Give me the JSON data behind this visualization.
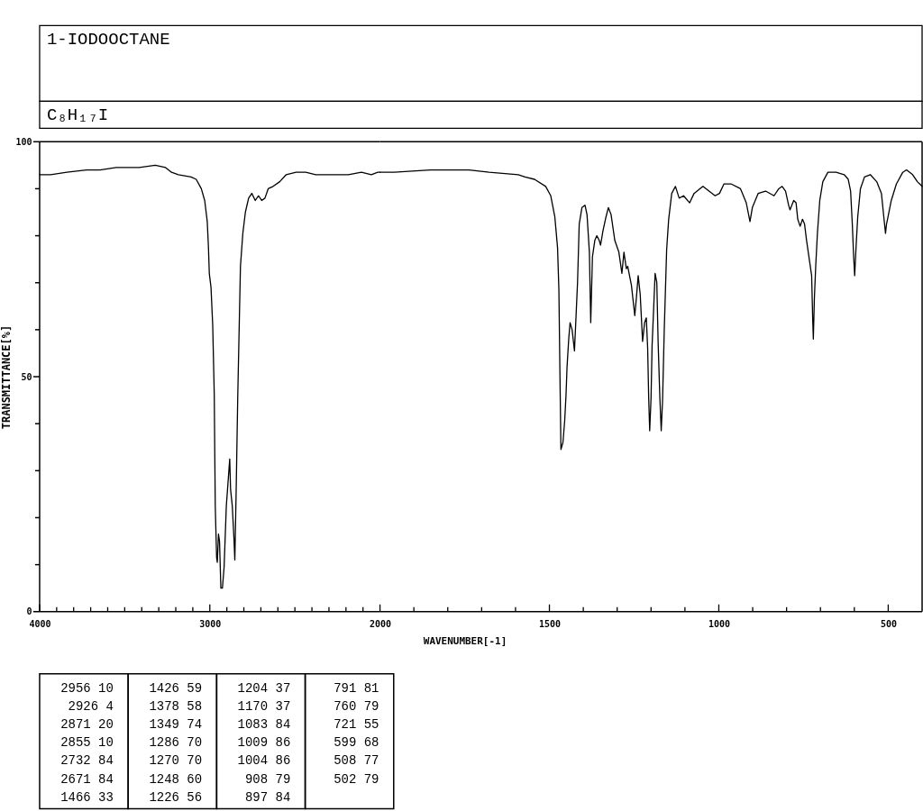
{
  "chart_data": [
    {
      "type": "line",
      "title": "1-IODOOCTANE",
      "subtitle": "C₈H₁₇I",
      "ylabel": "TRANSMITTANCE[%]",
      "xlim": [
        4000,
        2000
      ],
      "ylim": [
        0,
        100
      ],
      "xticks": [
        4000,
        {
          "value": 3900,
          "label": null
        },
        {
          "value": 3800,
          "label": null
        },
        {
          "value": 3700,
          "label": null
        },
        {
          "value": 3600,
          "label": null
        },
        {
          "value": 3500,
          "label": null
        },
        {
          "value": 3400,
          "label": null
        },
        {
          "value": 3300,
          "label": null
        },
        {
          "value": 3200,
          "label": null
        },
        {
          "value": 3100,
          "label": null
        },
        3000,
        {
          "value": 2900,
          "label": null
        },
        {
          "value": 2800,
          "label": null
        },
        {
          "value": 2700,
          "label": null
        },
        {
          "value": 2600,
          "label": null
        },
        {
          "value": 2500,
          "label": null
        },
        {
          "value": 2400,
          "label": null
        },
        {
          "value": 2300,
          "label": null
        },
        {
          "value": 2200,
          "label": null
        },
        {
          "value": 2100,
          "label": null
        }
      ],
      "yticks": [
        0,
        {
          "value": 10,
          "label": null
        },
        {
          "value": 20,
          "label": null
        },
        {
          "value": 30,
          "label": null
        },
        {
          "value": 40,
          "label": null
        },
        50,
        {
          "value": 60,
          "label": null
        },
        {
          "value": 70,
          "label": null
        },
        {
          "value": 80,
          "label": null
        },
        {
          "value": 90,
          "label": null
        },
        100
      ],
      "x": [
        4000,
        3935,
        3840,
        3725,
        3645,
        3550,
        3455,
        3415,
        3320,
        3260,
        3225,
        3185,
        3110,
        3080,
        3050,
        3030,
        3015,
        3008,
        3003,
        2993,
        2983,
        2974,
        2968,
        2960,
        2956,
        2949,
        2943,
        2935,
        2926,
        2916,
        2903,
        2893,
        2883,
        2878,
        2868,
        2858,
        2853,
        2845,
        2836,
        2828,
        2820,
        2806,
        2791,
        2772,
        2753,
        2733,
        2714,
        2695,
        2676,
        2657,
        2628,
        2589,
        2551,
        2493,
        2436,
        2378,
        2301,
        2186,
        2109,
        2051,
        2013,
        2000
      ],
      "series": [
        {
          "color": "#000000",
          "values": [
            93,
            93,
            93.5,
            94,
            94,
            94.5,
            94.5,
            94.5,
            95,
            94.5,
            93.5,
            93,
            92.5,
            92,
            90,
            87.5,
            83,
            77.5,
            72,
            69,
            61,
            46.5,
            22.5,
            11.5,
            10.5,
            16.5,
            15,
            5,
            5,
            9.5,
            22.5,
            27.5,
            32.5,
            26,
            22.5,
            15.5,
            11,
            26,
            45.5,
            59.5,
            73.5,
            80.5,
            85,
            88,
            89,
            87.5,
            88.5,
            87.5,
            88,
            90,
            90.5,
            91.5,
            93,
            93.5,
            93.5,
            93,
            93,
            93,
            93.5,
            93,
            93.5,
            93.5
          ]
        }
      ],
      "annotations": [
        "2956 10",
        "2926 4",
        "2871 20",
        "2855 10",
        "2732 84",
        "2671 84",
        "1466 33",
        "1426 59",
        "1378 58",
        "1349 74",
        "1286 70",
        "1270 70",
        "1248 60",
        "1226 56",
        "1204 37",
        "1170 37",
        "1083 84",
        "1009 86",
        "1004 86",
        "908 79",
        "897 84",
        "791 81",
        "760 79",
        "721 55",
        "599 68",
        "508 77",
        "502 79"
      ]
    },
    {
      "type": "line",
      "xlabel": "WAVENUMBER[-1]",
      "tick_labels": "x",
      "xlim": [
        2000,
        400
      ],
      "ylim": [
        0,
        100
      ],
      "xticks": [
        2000,
        {
          "value": 1900,
          "label": null
        },
        {
          "value": 1800,
          "label": null
        },
        {
          "value": 1700,
          "label": null
        },
        {
          "value": 1600,
          "label": null
        },
        1500,
        {
          "value": 1400,
          "label": null
        },
        {
          "value": 1300,
          "label": null
        },
        {
          "value": 1200,
          "label": null
        },
        {
          "value": 1100,
          "label": null
        },
        1000,
        {
          "value": 900,
          "label": null
        },
        {
          "value": 800,
          "label": null
        },
        {
          "value": 700,
          "label": null
        },
        {
          "value": 600,
          "label": null
        },
        500
      ],
      "x": [
        2000,
        1958,
        1852,
        1784,
        1737,
        1678,
        1592,
        1572,
        1544,
        1511,
        1496,
        1484,
        1476,
        1472,
        1469,
        1466,
        1460,
        1455,
        1451,
        1448,
        1443,
        1439,
        1433,
        1426,
        1421,
        1417,
        1412,
        1404,
        1395,
        1389,
        1382,
        1378,
        1373,
        1366,
        1360,
        1353,
        1349,
        1342,
        1333,
        1326,
        1318,
        1307,
        1295,
        1286,
        1280,
        1273,
        1269,
        1258,
        1248,
        1243,
        1238,
        1232,
        1225,
        1219,
        1214,
        1210,
        1207,
        1204,
        1200,
        1197,
        1192,
        1188,
        1183,
        1179,
        1174,
        1170,
        1166,
        1161,
        1154,
        1148,
        1139,
        1128,
        1117,
        1104,
        1086,
        1073,
        1047,
        1029,
        1011,
        998,
        985,
        963,
        936,
        919,
        908,
        901,
        884,
        862,
        837,
        823,
        813,
        803,
        794,
        790,
        779,
        772,
        767,
        760,
        753,
        747,
        741,
        733,
        726,
        723,
        721,
        718,
        714,
        709,
        702,
        693,
        678,
        654,
        630,
        618,
        611,
        606,
        602,
        599,
        595,
        590,
        582,
        570,
        553,
        534,
        520,
        513,
        508,
        505,
        502,
        491,
        476,
        457,
        446,
        428,
        414,
        400
      ],
      "series": [
        {
          "color": "#000000",
          "values": [
            93.5,
            93.5,
            94,
            94,
            94,
            93.5,
            93,
            92.5,
            92,
            90.5,
            88.5,
            84,
            77.5,
            68.5,
            51,
            34.5,
            36,
            40.5,
            46,
            52,
            58,
            61.5,
            60,
            55.5,
            63.5,
            70,
            82.5,
            86,
            86.5,
            84.5,
            76.5,
            61.5,
            75.5,
            79,
            80,
            79,
            78,
            81,
            84,
            86,
            84.5,
            79,
            76.5,
            72,
            76.5,
            73,
            73.5,
            69.5,
            63,
            67,
            71.5,
            67.5,
            57.5,
            61.5,
            62.5,
            56,
            45.5,
            38.5,
            45.5,
            56.5,
            65,
            72,
            70,
            57,
            45.5,
            38.5,
            45,
            60,
            77,
            83.5,
            89,
            90.5,
            88,
            88.5,
            87,
            89,
            90.5,
            89.5,
            88.5,
            89,
            91,
            91,
            90,
            87,
            83,
            86,
            89,
            89.5,
            88.5,
            90,
            90.5,
            89.5,
            86.5,
            85.5,
            87.5,
            87,
            83.5,
            82,
            83.5,
            82.5,
            79,
            75,
            71.5,
            62.5,
            58,
            66.5,
            73.5,
            80.5,
            87.5,
            91.5,
            93.5,
            93.5,
            93,
            92,
            89.5,
            82.5,
            75.5,
            71.5,
            77.5,
            84,
            90,
            92.5,
            93,
            91.5,
            89,
            84,
            80.5,
            82.5,
            83.5,
            87.5,
            91,
            93.5,
            94,
            93,
            91.5,
            90.5
          ]
        }
      ]
    }
  ]
}
